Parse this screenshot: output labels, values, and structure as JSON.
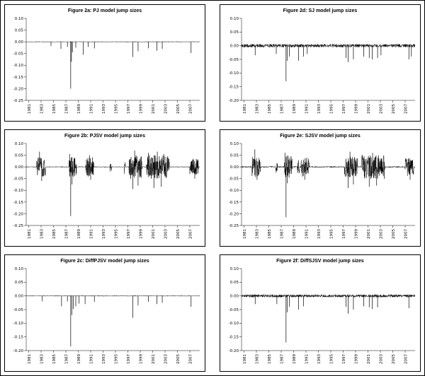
{
  "chart_data": [
    {
      "id": "2a",
      "panel": "top-left",
      "type": "line",
      "title": "Figure 2a: PJ model jump sizes",
      "xlabel": "",
      "ylabel": "",
      "xlim": [
        1980.6,
        2008.6
      ],
      "ylim": [
        -0.25,
        0.1
      ],
      "yticks": [
        0.1,
        0.05,
        0.0,
        -0.05,
        -0.1,
        -0.15,
        -0.2,
        -0.25
      ],
      "xticks": [
        1981,
        1983,
        1985,
        1987,
        1989,
        1991,
        1993,
        1995,
        1997,
        1999,
        2001,
        2003,
        2005,
        2007
      ],
      "baseline_noise": 0.0012,
      "volatility_clusters": [],
      "jump_spikes": [
        [
          1984.6,
          -0.018
        ],
        [
          1986.2,
          -0.03
        ],
        [
          1987.25,
          -0.022
        ],
        [
          1987.78,
          -0.2
        ],
        [
          1987.9,
          -0.085
        ],
        [
          1988.05,
          -0.045
        ],
        [
          1988.6,
          -0.025
        ],
        [
          1989.8,
          -0.055
        ],
        [
          1990.6,
          -0.022
        ],
        [
          1991.6,
          -0.028
        ],
        [
          1997.8,
          -0.065
        ],
        [
          1998.65,
          -0.04
        ],
        [
          2000.3,
          -0.028
        ],
        [
          2001.7,
          -0.038
        ],
        [
          2002.55,
          -0.03
        ],
        [
          2007.2,
          -0.048
        ]
      ]
    },
    {
      "id": "2d",
      "panel": "top-right",
      "type": "line",
      "title": "Figure 2d: SJ model jump sizes",
      "xlabel": "",
      "ylabel": "",
      "xlim": [
        1980.6,
        2008.6
      ],
      "ylim": [
        -0.2,
        0.1
      ],
      "yticks": [
        0.1,
        0.05,
        0.0,
        -0.05,
        -0.1,
        -0.15,
        -0.2
      ],
      "xticks": [
        1981,
        1983,
        1985,
        1987,
        1989,
        1991,
        1993,
        1995,
        1997,
        1999,
        2001,
        2003,
        2005,
        2007
      ],
      "baseline_noise": 0.006,
      "volatility_clusters": [],
      "jump_spikes": [
        [
          1982.8,
          -0.035
        ],
        [
          1986.2,
          -0.03
        ],
        [
          1987.78,
          -0.13
        ],
        [
          1987.95,
          -0.055
        ],
        [
          1988.3,
          -0.04
        ],
        [
          1989.8,
          -0.055
        ],
        [
          1990.6,
          -0.04
        ],
        [
          1991.2,
          -0.03
        ],
        [
          1997.45,
          -0.045
        ],
        [
          1997.8,
          -0.06
        ],
        [
          1998.65,
          -0.05
        ],
        [
          2000.3,
          -0.04
        ],
        [
          2001.2,
          -0.045
        ],
        [
          2001.7,
          -0.05
        ],
        [
          2002.55,
          -0.045
        ],
        [
          2003.1,
          -0.035
        ],
        [
          2007.6,
          -0.05
        ],
        [
          2008.0,
          -0.04
        ]
      ]
    },
    {
      "id": "2b",
      "panel": "middle-left",
      "type": "line",
      "title": "Figure 2b: PJSV model jump sizes",
      "xlabel": "",
      "ylabel": "",
      "xlim": [
        1980.6,
        2008.6
      ],
      "ylim": [
        -0.25,
        0.1
      ],
      "yticks": [
        0.1,
        0.05,
        0.0,
        -0.05,
        -0.1,
        -0.15,
        -0.2,
        -0.25
      ],
      "xticks": [
        1981,
        1983,
        1985,
        1987,
        1989,
        1991,
        1993,
        1995,
        1997,
        1999,
        2001,
        2003,
        2005,
        2007
      ],
      "baseline_noise": 0.0015,
      "volatility_clusters": [
        [
          1982.3,
          1983.7,
          0.04
        ],
        [
          1987.5,
          1988.7,
          0.045
        ],
        [
          1990.2,
          1991.5,
          0.04
        ],
        [
          1994.1,
          1994.4,
          0.025
        ],
        [
          1996.4,
          1996.6,
          0.03
        ],
        [
          1997.2,
          1999.3,
          0.05
        ],
        [
          2000.0,
          2003.7,
          0.05
        ],
        [
          2007.0,
          2008.4,
          0.035
        ]
      ],
      "jump_spikes": [
        [
          1982.75,
          0.065
        ],
        [
          1983.1,
          -0.06
        ],
        [
          1987.6,
          0.055
        ],
        [
          1987.78,
          -0.21
        ],
        [
          1988.0,
          -0.075
        ],
        [
          1990.8,
          0.05
        ],
        [
          1991.0,
          -0.055
        ],
        [
          1997.8,
          -0.095
        ],
        [
          1998.1,
          0.07
        ],
        [
          1998.65,
          -0.08
        ],
        [
          2000.3,
          0.06
        ],
        [
          2001.2,
          -0.09
        ],
        [
          2001.75,
          0.065
        ],
        [
          2002.4,
          -0.085
        ],
        [
          2002.8,
          0.055
        ],
        [
          2007.8,
          -0.05
        ]
      ]
    },
    {
      "id": "2e",
      "panel": "middle-right",
      "type": "line",
      "title": "Figure 2e: SJSV model jump sizes",
      "xlabel": "",
      "ylabel": "",
      "xlim": [
        1980.6,
        2008.6
      ],
      "ylim": [
        -0.25,
        0.1
      ],
      "yticks": [
        0.1,
        0.05,
        0.0,
        -0.05,
        -0.1,
        -0.15,
        -0.2,
        -0.25
      ],
      "xticks": [
        1981,
        1983,
        1985,
        1987,
        1989,
        1991,
        1993,
        1995,
        1997,
        1999,
        2001,
        2003,
        2005,
        2007
      ],
      "baseline_noise": 0.0025,
      "volatility_clusters": [
        [
          1982.3,
          1983.7,
          0.042
        ],
        [
          1986.1,
          1986.4,
          0.025
        ],
        [
          1987.5,
          1988.8,
          0.048
        ],
        [
          1989.6,
          1990.0,
          0.03
        ],
        [
          1990.2,
          1991.5,
          0.04
        ],
        [
          1997.2,
          1999.3,
          0.048
        ],
        [
          2000.0,
          2003.7,
          0.05
        ],
        [
          2007.0,
          2008.4,
          0.038
        ]
      ],
      "jump_spikes": [
        [
          1982.75,
          0.075
        ],
        [
          1983.1,
          -0.055
        ],
        [
          1987.6,
          0.06
        ],
        [
          1987.78,
          -0.215
        ],
        [
          1988.0,
          -0.07
        ],
        [
          1990.8,
          -0.055
        ],
        [
          1997.8,
          -0.09
        ],
        [
          1998.1,
          0.065
        ],
        [
          1998.65,
          -0.075
        ],
        [
          2001.2,
          -0.085
        ],
        [
          2001.75,
          0.06
        ],
        [
          2002.4,
          -0.08
        ],
        [
          2007.8,
          -0.055
        ]
      ]
    },
    {
      "id": "2c",
      "panel": "bottom-left",
      "type": "line",
      "title": "Figure 2c: DiffPJSV model jump sizes",
      "xlabel": "",
      "ylabel": "",
      "xlim": [
        1980.6,
        2008.6
      ],
      "ylim": [
        -0.2,
        0.1
      ],
      "yticks": [
        0.1,
        0.05,
        0.0,
        -0.05,
        -0.1,
        -0.15,
        -0.2
      ],
      "xticks": [
        1981,
        1983,
        1985,
        1987,
        1989,
        1991,
        1993,
        1995,
        1997,
        1999,
        2001,
        2003,
        2005,
        2007
      ],
      "baseline_noise": 0.0012,
      "volatility_clusters": [],
      "jump_spikes": [
        [
          1983.2,
          -0.02
        ],
        [
          1986.3,
          -0.038
        ],
        [
          1987.25,
          -0.02
        ],
        [
          1987.78,
          -0.185
        ],
        [
          1987.95,
          -0.07
        ],
        [
          1988.2,
          -0.048
        ],
        [
          1988.6,
          -0.038
        ],
        [
          1989.1,
          -0.028
        ],
        [
          1990.1,
          -0.03
        ],
        [
          1991.6,
          -0.022
        ],
        [
          1997.8,
          -0.08
        ],
        [
          1998.65,
          -0.035
        ],
        [
          2000.3,
          -0.022
        ],
        [
          2001.7,
          -0.03
        ],
        [
          2002.55,
          -0.025
        ],
        [
          2007.2,
          -0.04
        ]
      ]
    },
    {
      "id": "2f",
      "panel": "bottom-right",
      "type": "line",
      "title": "Figure 2f: DiffSJSV model jump sizes",
      "xlabel": "",
      "ylabel": "",
      "xlim": [
        1980.6,
        2008.6
      ],
      "ylim": [
        -0.2,
        0.1
      ],
      "yticks": [
        0.1,
        0.05,
        0.0,
        -0.05,
        -0.1,
        -0.15,
        -0.2
      ],
      "xticks": [
        1981,
        1983,
        1985,
        1987,
        1989,
        1991,
        1993,
        1995,
        1997,
        1999,
        2001,
        2003,
        2005,
        2007
      ],
      "baseline_noise": 0.005,
      "volatility_clusters": [],
      "jump_spikes": [
        [
          1982.8,
          -0.03
        ],
        [
          1986.3,
          -0.03
        ],
        [
          1987.78,
          -0.17
        ],
        [
          1987.95,
          -0.06
        ],
        [
          1988.3,
          -0.04
        ],
        [
          1989.8,
          -0.05
        ],
        [
          1990.6,
          -0.038
        ],
        [
          1997.45,
          -0.04
        ],
        [
          1997.8,
          -0.065
        ],
        [
          1998.65,
          -0.05
        ],
        [
          2000.3,
          -0.038
        ],
        [
          2001.2,
          -0.042
        ],
        [
          2001.7,
          -0.048
        ],
        [
          2002.55,
          -0.042
        ],
        [
          2007.6,
          -0.045
        ]
      ]
    }
  ],
  "style": {
    "line_color": "#000000",
    "panel_border_color": "#000000",
    "background_color": "#ffffff"
  }
}
